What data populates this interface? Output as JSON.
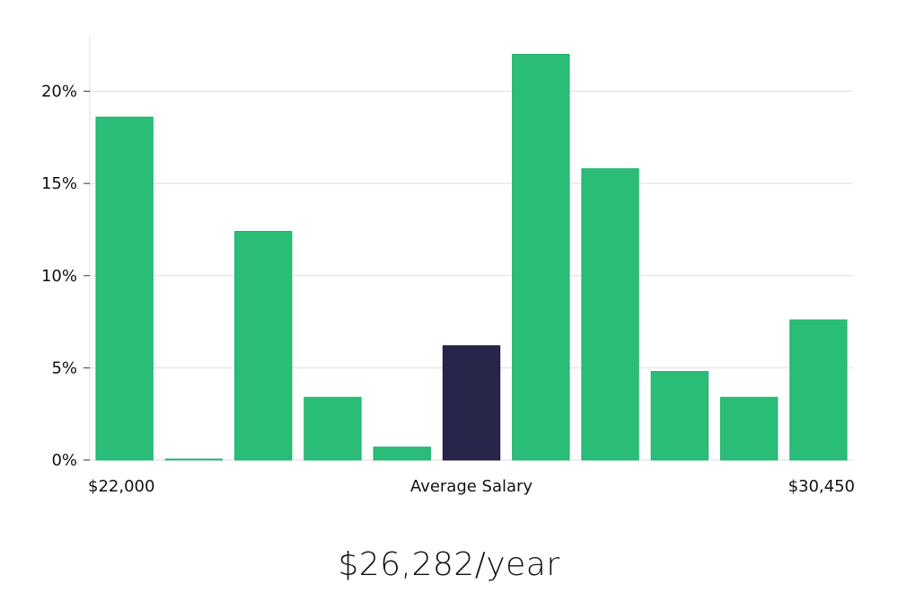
{
  "chart_data": {
    "type": "bar",
    "title": "",
    "xlabel": "Average Salary",
    "ylabel": "",
    "x_range_labels": {
      "min": "$22,000",
      "max": "$30,450"
    },
    "ylim": [
      0,
      23
    ],
    "y_ticks": [
      0,
      5,
      10,
      15,
      20
    ],
    "y_tick_format": "percent",
    "values": [
      18.6,
      0.05,
      12.4,
      3.4,
      0.7,
      6.2,
      22.0,
      15.8,
      4.8,
      3.4,
      7.6
    ],
    "highlight_index": 5,
    "colors": {
      "bar": "#2abd77",
      "highlight": "#28254a",
      "grid": "#dddddd"
    }
  },
  "salary_summary": "$26,282/year"
}
